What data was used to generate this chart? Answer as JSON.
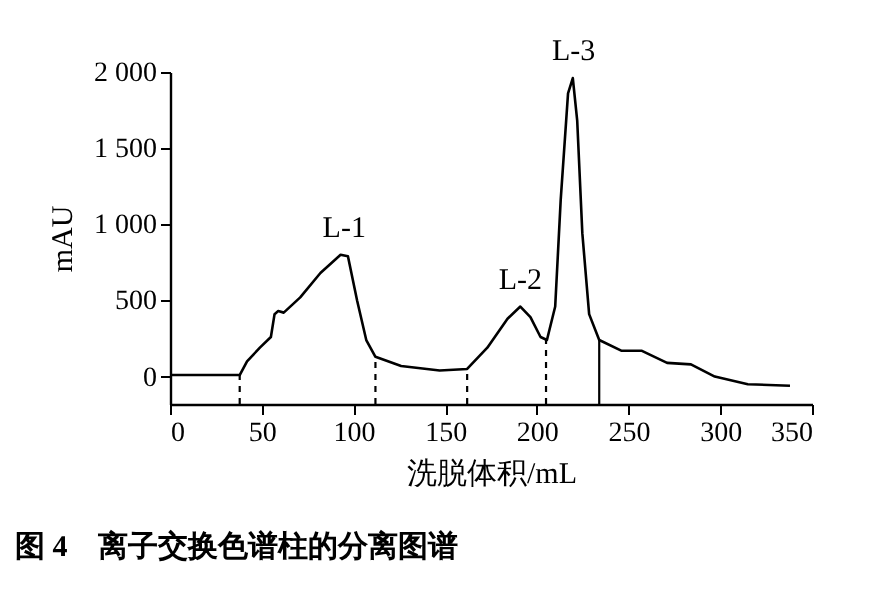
{
  "chart_data": {
    "type": "line",
    "title": "图 4　离子交换色谱柱的分离图谱",
    "xlabel": "洗脱体积/mL",
    "ylabel": "mAU",
    "xlim": [
      0,
      350
    ],
    "xticks": [
      0,
      50,
      100,
      150,
      200,
      250,
      300,
      350
    ],
    "ylim": [
      -180,
      2000
    ],
    "yticks": [
      0,
      500,
      {
        "value": 1000,
        "label": "1 000"
      },
      {
        "value": 1500,
        "label": "1 500"
      },
      {
        "value": 2000,
        "label": "2 000"
      }
    ],
    "grid": false,
    "legend": false,
    "series": [
      {
        "color": "#000000",
        "x": [
          0,
          38,
          42,
          49,
          55,
          57,
          59,
          62,
          71,
          82,
          93,
          97,
          102,
          107,
          112,
          126,
          147,
          162,
          173,
          184,
          191,
          196.5,
          202,
          205.5,
          210,
          213,
          217,
          219.6,
          222,
          224.8,
          228.5,
          234,
          246,
          257,
          271,
          284,
          297,
          315,
          338
        ],
        "values": [
          10,
          10,
          100,
          190,
          260,
          410,
          430,
          420,
          520,
          680,
          800,
          790,
          500,
          240,
          130,
          70,
          40,
          50,
          190,
          380,
          460,
          390,
          260,
          240,
          460,
          1160,
          1860,
          1960,
          1680,
          940,
          410,
          240,
          170,
          170,
          90,
          80,
          0,
          -50,
          -60
        ]
      }
    ],
    "ref_lines": [
      {
        "axis": "x",
        "value": 38,
        "line_style": "dashed"
      },
      {
        "axis": "x",
        "value": 112,
        "line_style": "dashed"
      },
      {
        "axis": "x",
        "value": 162,
        "line_style": "dashed"
      },
      {
        "axis": "x",
        "value": 205,
        "line_style": "dashed"
      },
      {
        "axis": "x",
        "value": 234,
        "line_style": "solid"
      }
    ],
    "annotations": [
      {
        "text": "L-1",
        "x": 95,
        "y": 800
      },
      {
        "text": "L-2",
        "x": 191,
        "y": 455
      },
      {
        "text": "L-3",
        "x": 220,
        "y": 1960
      }
    ]
  }
}
